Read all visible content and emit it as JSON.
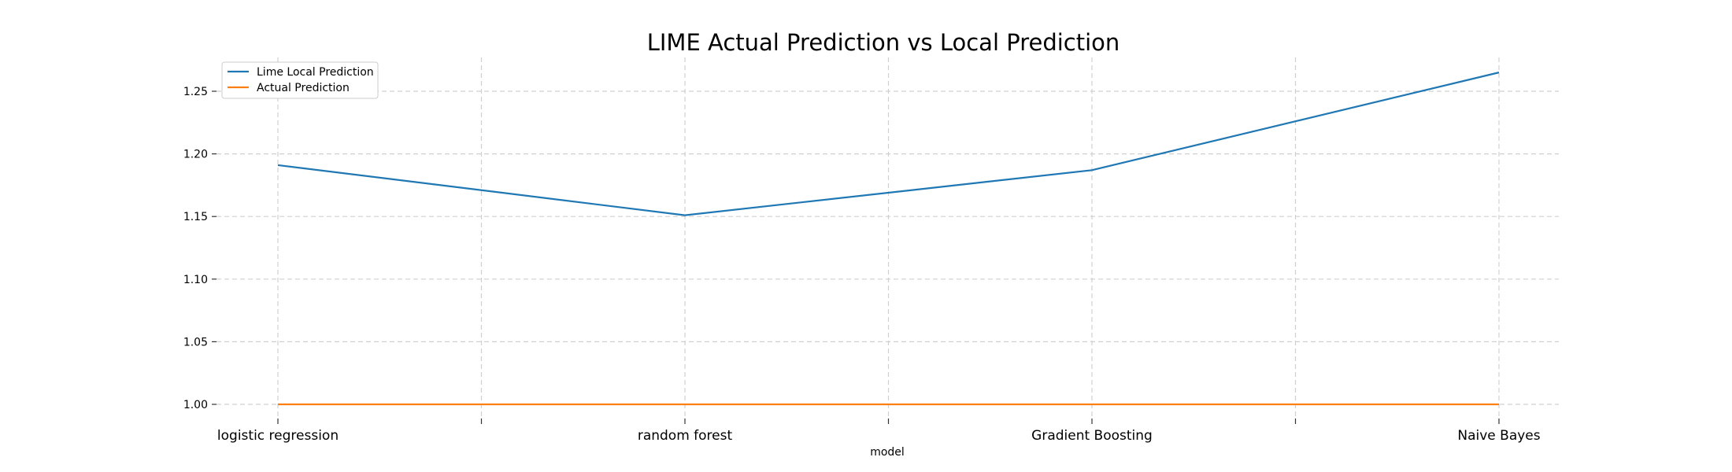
{
  "chart_data": {
    "type": "line",
    "title": "LIME Actual Prediction vs Local Prediction",
    "xlabel": "model",
    "ylabel": "",
    "categories": [
      "logistic regression",
      "random forest",
      "Gradient Boosting",
      "Naive Bayes"
    ],
    "minor_x_ticks": [
      0.5,
      1.5,
      2.5
    ],
    "yticks": [
      1.0,
      1.05,
      1.1,
      1.15,
      1.2,
      1.25
    ],
    "ylim": [
      0.988,
      1.278
    ],
    "grid": true,
    "legend_position": "upper-left",
    "series": [
      {
        "name": "Lime Local Prediction",
        "color": "#1f77b4",
        "values": [
          1.191,
          1.151,
          1.187,
          1.265
        ]
      },
      {
        "name": "Actual Prediction",
        "color": "#ff7f0e",
        "values": [
          1.0,
          1.0,
          1.0,
          1.0
        ]
      }
    ]
  }
}
